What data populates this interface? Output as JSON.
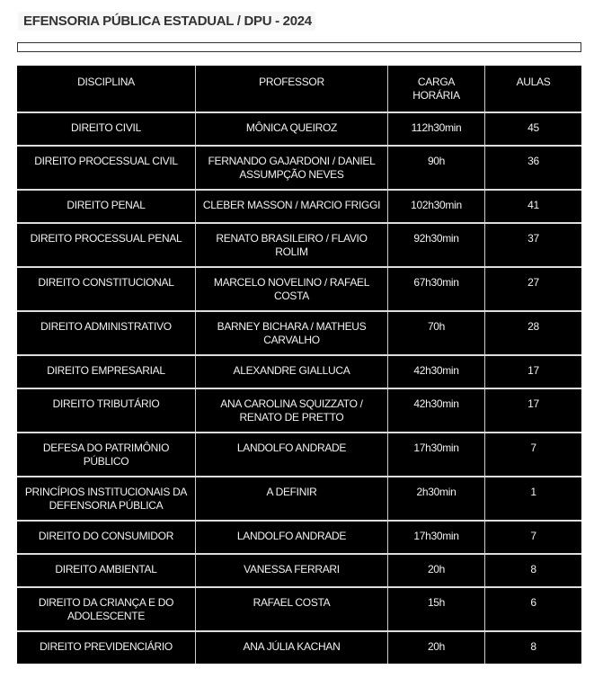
{
  "title": "EFENSORIA PÚBLICA ESTADUAL / DPU - 2024",
  "headers": [
    "DISCIPLINA",
    "PROFESSOR",
    "CARGA HORÁRIA",
    "AULAS"
  ],
  "rows": [
    [
      "DIREITO CIVIL",
      "MÔNICA QUEIROZ",
      "112h30min",
      "45"
    ],
    [
      "DIREITO PROCESSUAL CIVIL",
      "FERNANDO GAJARDONI / DANIEL ASSUMPÇÃO NEVES",
      "90h",
      "36"
    ],
    [
      "DIREITO PENAL",
      "CLEBER MASSON / MARCIO FRIGGI",
      "102h30min",
      "41"
    ],
    [
      "DIREITO PROCESSUAL PENAL",
      "RENATO BRASILEIRO / FLAVIO ROLIM",
      "92h30min",
      "37"
    ],
    [
      "DIREITO CONSTITUCIONAL",
      "MARCELO NOVELINO / RAFAEL COSTA",
      "67h30min",
      "27"
    ],
    [
      "DIREITO ADMINISTRATIVO",
      "BARNEY BICHARA / MATHEUS CARVALHO",
      "70h",
      "28"
    ],
    [
      "DIREITO EMPRESARIAL",
      "ALEXANDRE GIALLUCA",
      "42h30min",
      "17"
    ],
    [
      "DIREITO TRIBUTÁRIO",
      "ANA CAROLINA SQUIZZATO / RENATO DE PRETTO",
      "42h30min",
      "17"
    ],
    [
      "DEFESA DO PATRIMÔNIO PÚBLICO",
      "LANDOLFO ANDRADE",
      "17h30min",
      "7"
    ],
    [
      "PRINCÍPIOS INSTITUCIONAIS DA DEFENSORIA PÚBLICA",
      "A DEFINIR",
      "2h30min",
      "1"
    ],
    [
      "DIREITO DO CONSUMIDOR",
      "LANDOLFO ANDRADE",
      "17h30min",
      "7"
    ],
    [
      "DIREITO AMBIENTAL",
      "VANESSA FERRARI",
      "20h",
      "8"
    ],
    [
      "DIREITO DA CRIANÇA E DO ADOLESCENTE",
      "RAFAEL COSTA",
      "15h",
      "6"
    ],
    [
      "DIREITO PREVIDENCIÁRIO",
      "ANA JÚLIA KACHAN",
      "20h",
      "8"
    ]
  ]
}
